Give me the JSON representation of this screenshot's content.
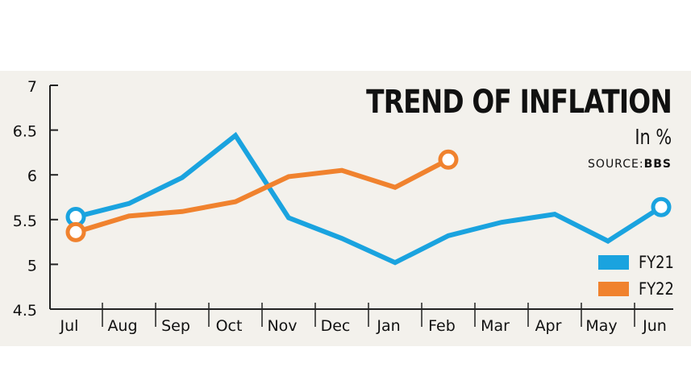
{
  "header": {
    "title": "TREND OF INFLATION",
    "unit": "In %",
    "source_label": "SOURCE:",
    "source_value": "BBS"
  },
  "colors": {
    "background": "#f3f1ec",
    "fy21": "#1aa3df",
    "fy22": "#f0822e",
    "axis": "#222222"
  },
  "chart_data": {
    "type": "line",
    "categories": [
      "Jul",
      "Aug",
      "Sep",
      "Oct",
      "Nov",
      "Dec",
      "Jan",
      "Feb",
      "Mar",
      "Apr",
      "May",
      "Jun"
    ],
    "y_ticks": [
      "7",
      "6.5",
      "6",
      "5.5",
      "5",
      "4.5"
    ],
    "ylim": [
      4.5,
      7
    ],
    "grid": false,
    "legend_position": "bottom-right",
    "series": [
      {
        "name": "FY21",
        "color": "#1aa3df",
        "values": [
          5.53,
          5.68,
          5.97,
          6.44,
          5.52,
          5.29,
          5.02,
          5.32,
          5.47,
          5.56,
          5.26,
          5.64
        ]
      },
      {
        "name": "FY22",
        "color": "#f0822e",
        "values": [
          5.36,
          5.54,
          5.59,
          5.7,
          5.98,
          6.05,
          5.86,
          6.17,
          null,
          null,
          null,
          null
        ]
      }
    ]
  }
}
